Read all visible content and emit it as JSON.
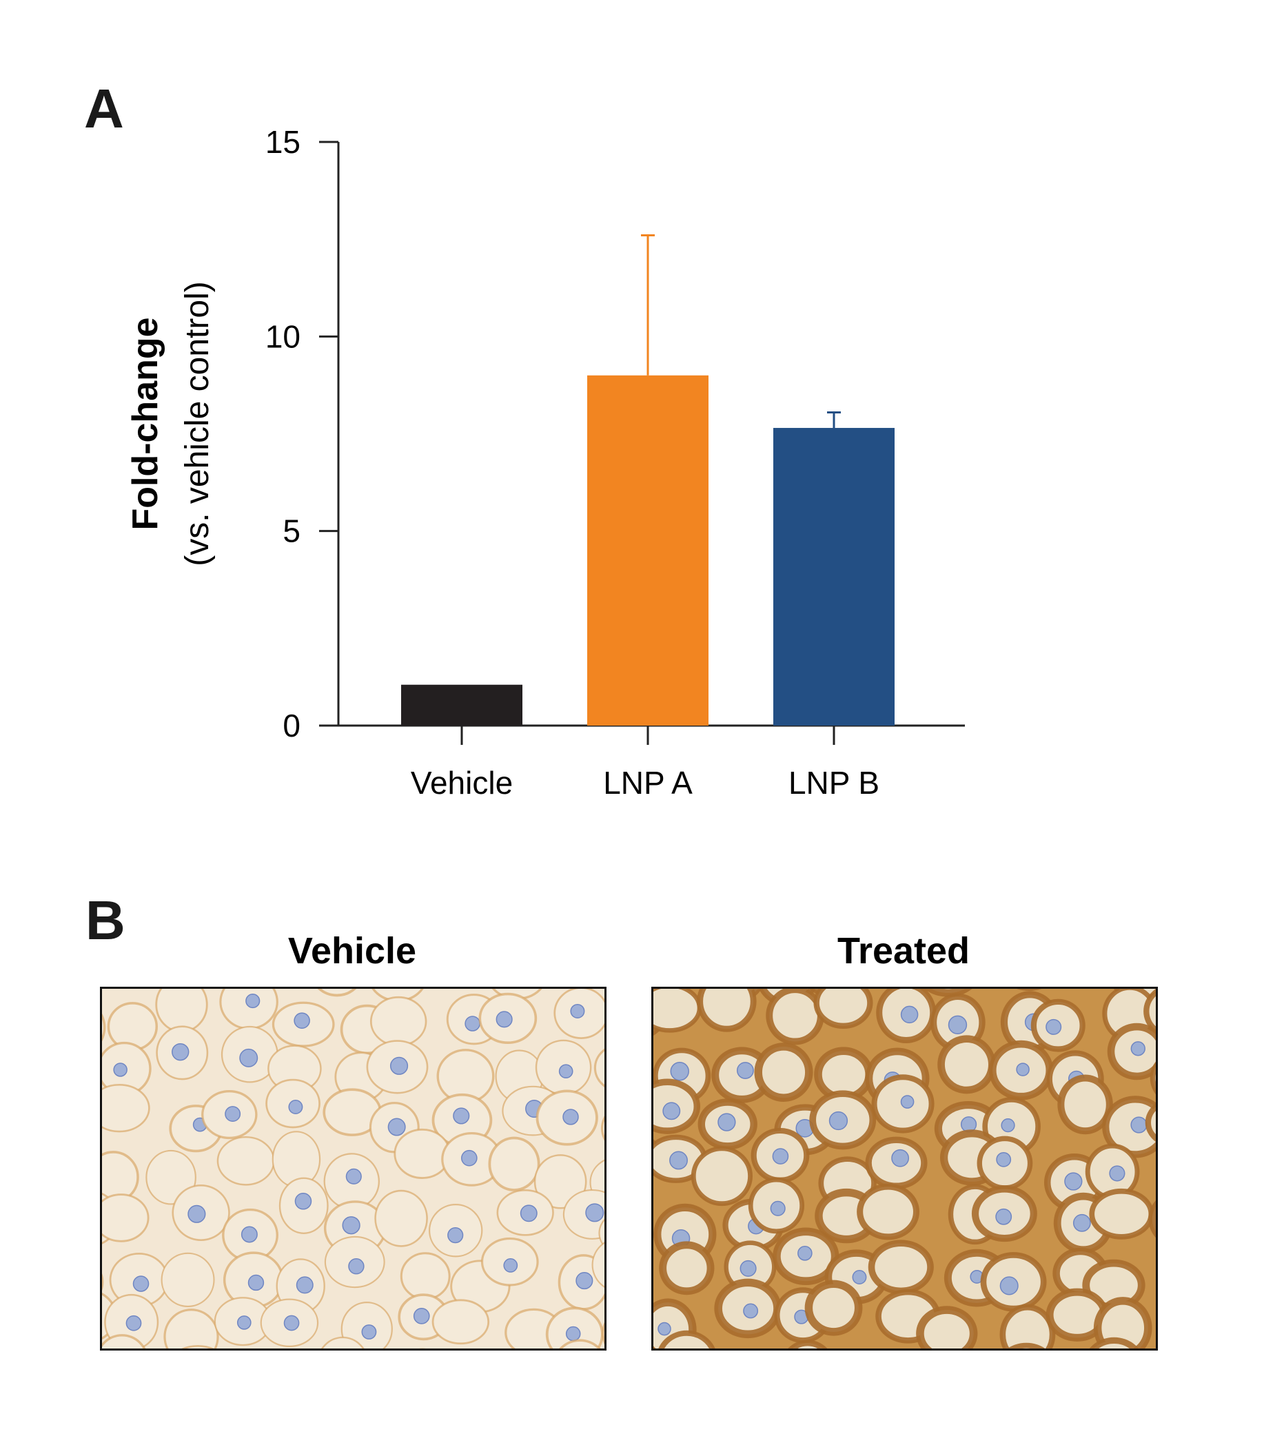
{
  "panels": {
    "a": {
      "label": "A"
    },
    "b": {
      "label": "B"
    }
  },
  "chart_data": {
    "type": "bar",
    "title": "",
    "ylabel": "Fold-change",
    "ylabel_sub": "(vs. vehicle control)",
    "xlabel": "",
    "categories": [
      "Vehicle",
      "LNP A",
      "LNP B"
    ],
    "values": [
      1.05,
      9.0,
      7.65
    ],
    "error_upper": [
      0,
      3.6,
      0.4
    ],
    "colors": [
      "#231f20",
      "#f28521",
      "#234f84"
    ],
    "ylim": [
      0,
      15
    ],
    "yticks": [
      0,
      5,
      10,
      15
    ],
    "grid": false
  },
  "micrographs": {
    "vehicle": {
      "title": "Vehicle"
    },
    "treated": {
      "title": "Treated"
    }
  }
}
